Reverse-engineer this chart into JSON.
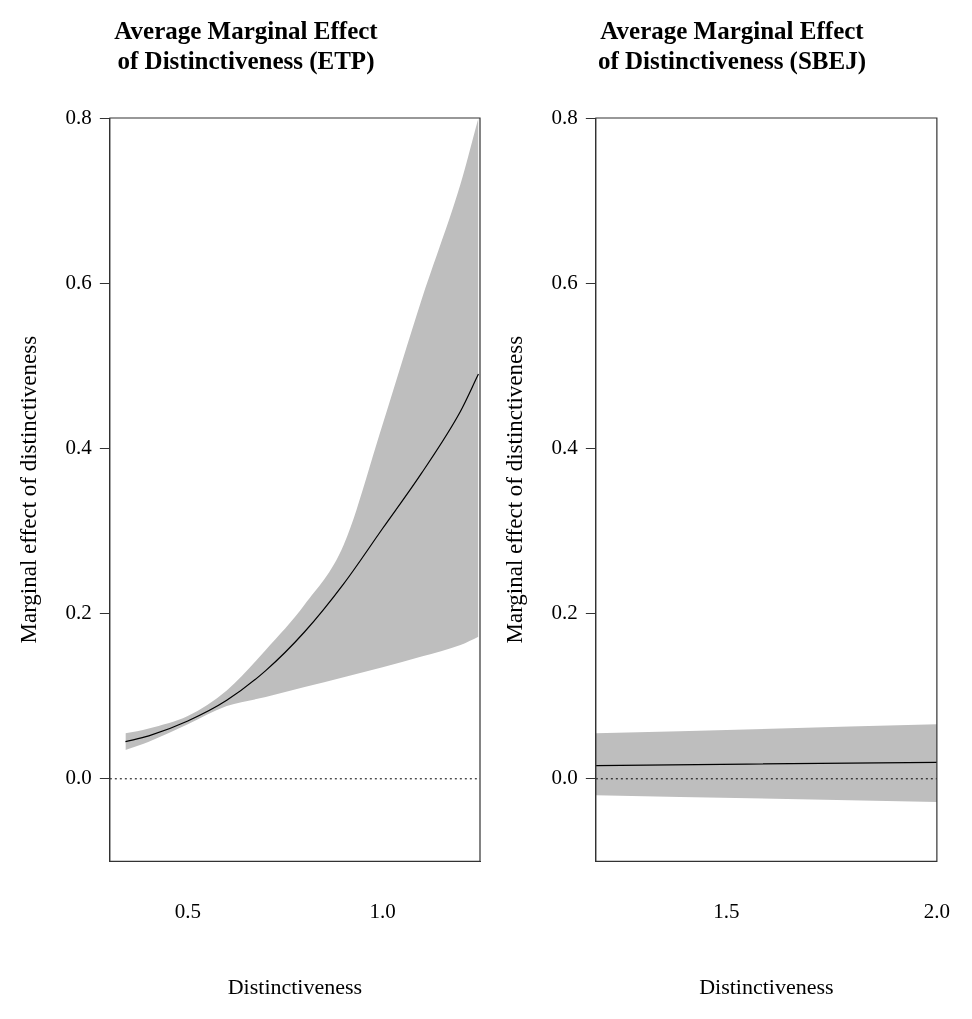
{
  "chart_data": [
    {
      "type": "line",
      "title": "Average Marginal Effect of Distinctiveness (ETP)",
      "xlabel": "Distinctiveness",
      "ylabel": "Marginal effect of distinctiveness",
      "xlim": [
        0.3,
        1.25
      ],
      "ylim": [
        -0.1,
        0.8
      ],
      "xticks": [
        0.5,
        {
          "value": 1,
          "label": "1.0"
        }
      ],
      "yticks": [
        {
          "value": 0,
          "label": "0.0"
        },
        0.2,
        0.4,
        0.6,
        0.8
      ],
      "grid": false,
      "legend": false,
      "ref_lines": [
        {
          "axis": "y",
          "value": 0,
          "line_style": "dotted"
        }
      ],
      "series": [
        {
          "color": "#000000",
          "x": [
            0.34,
            0.4,
            0.5,
            0.6,
            0.7,
            0.8,
            0.9,
            1.0,
            1.1,
            1.2,
            1.246
          ],
          "values": [
            0.045,
            0.052,
            0.07,
            0.095,
            0.131,
            0.178,
            0.236,
            0.303,
            0.37,
            0.445,
            0.49
          ],
          "lower": [
            0.035,
            0.045,
            0.066,
            0.088,
            0.099,
            0.111,
            0.123,
            0.135,
            0.148,
            0.162,
            0.172
          ],
          "upper": [
            0.055,
            0.061,
            0.076,
            0.107,
            0.156,
            0.211,
            0.283,
            0.429,
            0.58,
            0.72,
            0.8
          ]
        }
      ]
    },
    {
      "type": "line",
      "title": "Average Marginal Effect of Distinctiveness (SBEJ)",
      "xlabel": "Distinctiveness",
      "ylabel": "Marginal effect of distinctiveness",
      "xlim": [
        1.19,
        2.0
      ],
      "ylim": [
        -0.1,
        0.8
      ],
      "xticks": [
        1.5,
        {
          "value": 2,
          "label": "2.0"
        }
      ],
      "yticks": [
        {
          "value": 0,
          "label": "0.0"
        },
        0.2,
        0.4,
        0.6,
        0.8
      ],
      "grid": false,
      "legend": false,
      "ref_lines": [
        {
          "axis": "y",
          "value": 0,
          "line_style": "dotted"
        }
      ],
      "series": [
        {
          "color": "#000000",
          "x": [
            1.19,
            2.0
          ],
          "values": [
            0.016,
            0.02
          ],
          "lower": [
            -0.02,
            -0.028
          ],
          "upper": [
            0.055,
            0.066
          ]
        }
      ]
    }
  ]
}
